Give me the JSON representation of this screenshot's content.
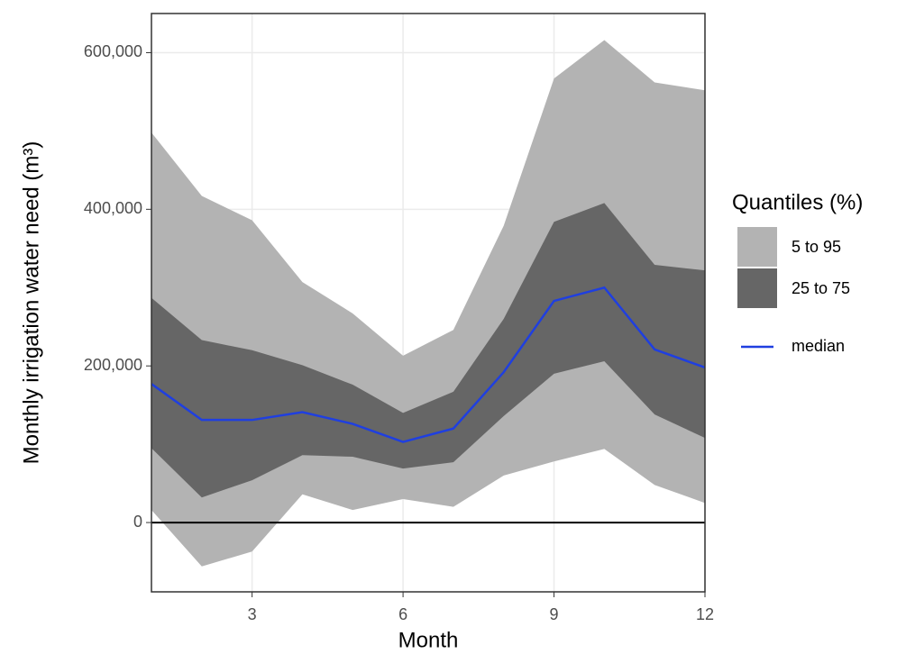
{
  "chart_data": {
    "type": "ribbon",
    "x_label": "Month",
    "y_label": "Monthly irrigation water need (m³)",
    "legend_title": "Quantiles (%)",
    "x": [
      1,
      2,
      3,
      4,
      5,
      6,
      7,
      8,
      9,
      10,
      11,
      12
    ],
    "series": [
      {
        "name": "5 to 95",
        "color": "#b3b3b3",
        "lower": [
          16000,
          -56000,
          -37000,
          36000,
          16000,
          30000,
          20000,
          60000,
          78000,
          94000,
          48000,
          25000
        ],
        "upper": [
          498000,
          417000,
          386000,
          307000,
          267000,
          213000,
          246000,
          379000,
          567000,
          616000,
          562000,
          552000
        ]
      },
      {
        "name": "25 to 75",
        "color": "#666666",
        "lower": [
          95000,
          32000,
          54000,
          86000,
          84000,
          69000,
          77000,
          136000,
          190000,
          206000,
          138000,
          108000
        ],
        "upper": [
          287000,
          233000,
          220000,
          201000,
          176000,
          140000,
          167000,
          260000,
          384000,
          408000,
          329000,
          322000
        ]
      },
      {
        "name": "median",
        "color": "#1f3fe0",
        "values": [
          177000,
          131000,
          131000,
          141000,
          126000,
          103000,
          120000,
          192000,
          283000,
          300000,
          221000,
          198000
        ]
      }
    ],
    "xlim": [
      1,
      12
    ],
    "xticks": [
      3,
      6,
      9,
      12
    ],
    "ylim": [
      -88500,
      650000
    ],
    "yticks": [
      0,
      {
        "value": 200000,
        "label": "200,000"
      },
      {
        "value": 400000,
        "label": "400,000"
      },
      {
        "value": 600000,
        "label": "600,000"
      }
    ],
    "hline": 0,
    "grid": true
  }
}
